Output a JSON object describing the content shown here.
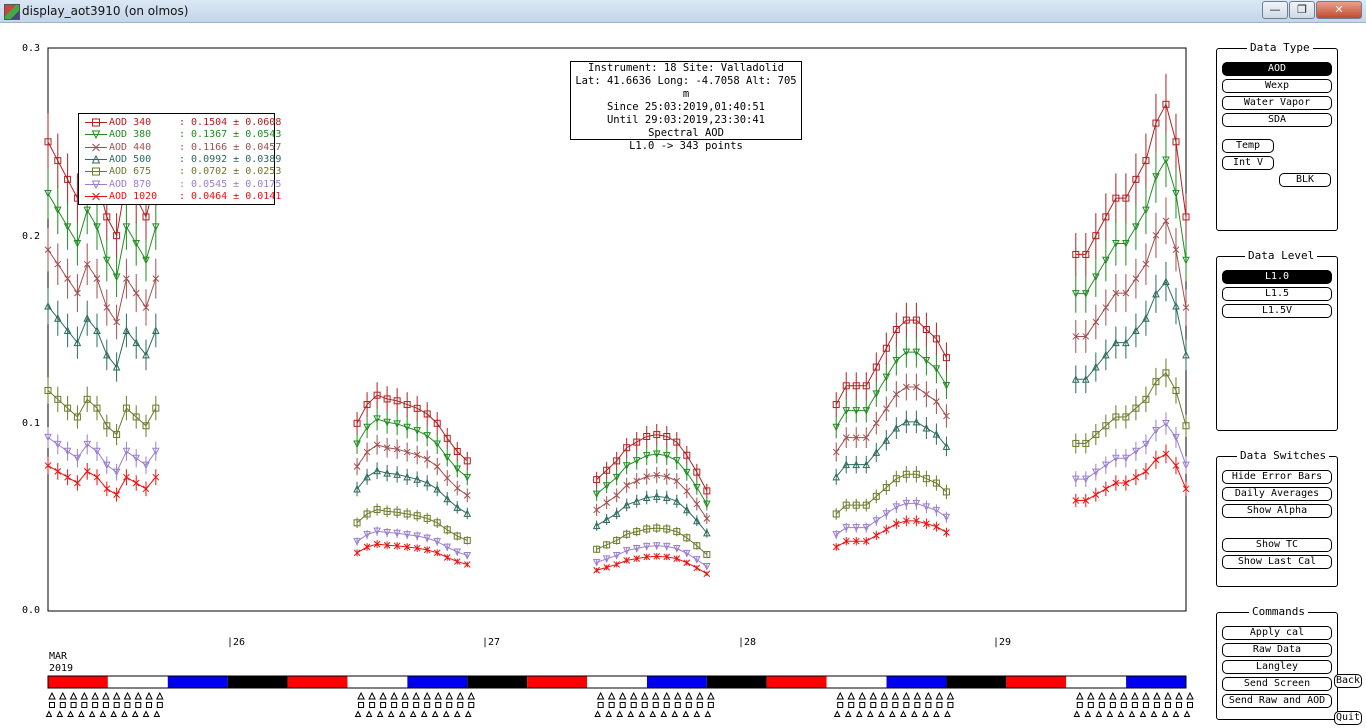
{
  "window": {
    "title": "display_aot3910 (on olmos)",
    "controls": [
      "—",
      "❐",
      "✕"
    ]
  },
  "info": {
    "lines": [
      "Instrument: 18 Site: Valladolid",
      "Lat: 41.6636 Long: -4.7058 Alt: 705 m",
      "Since 25:03:2019,01:40:51",
      "Until 29:03:2019,23:30:41",
      "Spectral AOD",
      "L1.0 -> 343 points"
    ]
  },
  "legend": [
    {
      "label": "AOD 340",
      "value": ": 0.1504 ± 0.0608",
      "color": "#b02020",
      "marker": "square"
    },
    {
      "label": "AOD 380",
      "value": ": 0.1367 ± 0.0543",
      "color": "#228b22",
      "marker": "tri-down"
    },
    {
      "label": "AOD 440",
      "value": ": 0.1166 ± 0.0457",
      "color": "#a05050",
      "marker": "x"
    },
    {
      "label": "AOD 500",
      "value": ": 0.0992 ± 0.0389",
      "color": "#2e6b5e",
      "marker": "tri-up"
    },
    {
      "label": "AOD 675",
      "value": ": 0.0702 ± 0.0253",
      "color": "#6b7a2a",
      "marker": "square"
    },
    {
      "label": "AOD 870",
      "value": ": 0.0545 ± 0.0175",
      "color": "#9a7fd0",
      "marker": "tri-down"
    },
    {
      "label": "AOD 1020",
      "value": " : 0.0464 ± 0.0141",
      "color": "#ee1111",
      "marker": "x"
    }
  ],
  "axis": {
    "y_ticks": [
      "0.3",
      "0.2",
      "0.1",
      "0.0"
    ],
    "day_ticks": [
      "|26",
      "|27",
      "|28",
      "|29"
    ],
    "month": "MAR",
    "year": "2019"
  },
  "chart_data": {
    "type": "scatter",
    "ylim": [
      0,
      0.3
    ],
    "x_unit": "day of March 2019",
    "xlim": [
      25.0,
      29.75
    ],
    "series": [
      {
        "name": "AOD 340",
        "color": "#b02020",
        "marker": "square",
        "scale": 1.0
      },
      {
        "name": "AOD 380",
        "color": "#228b22",
        "marker": "tri-down",
        "scale": 0.89
      },
      {
        "name": "AOD 440",
        "color": "#a05050",
        "marker": "x",
        "scale": 0.77
      },
      {
        "name": "AOD 500",
        "color": "#2e6b5e",
        "marker": "tri-up",
        "scale": 0.65
      },
      {
        "name": "AOD 675",
        "color": "#6b7a2a",
        "marker": "square",
        "scale": 0.47
      },
      {
        "name": "AOD 870",
        "color": "#9a7fd0",
        "marker": "tri-down",
        "scale": 0.37
      },
      {
        "name": "AOD 1020",
        "color": "#ee1111",
        "marker": "x",
        "scale": 0.31
      }
    ],
    "segments": [
      {
        "x_start": 25.0,
        "x_end": 25.45,
        "aod340": [
          0.25,
          0.24,
          0.23,
          0.22,
          0.24,
          0.23,
          0.21,
          0.2,
          0.23,
          0.22,
          0.21,
          0.23
        ]
      },
      {
        "x_start": 26.29,
        "x_end": 26.75,
        "aod340": [
          0.1,
          0.11,
          0.115,
          0.113,
          0.112,
          0.11,
          0.108,
          0.105,
          0.1,
          0.092,
          0.085,
          0.08
        ]
      },
      {
        "x_start": 27.29,
        "x_end": 27.75,
        "aod340": [
          0.07,
          0.075,
          0.08,
          0.087,
          0.09,
          0.093,
          0.094,
          0.093,
          0.09,
          0.083,
          0.074,
          0.064
        ]
      },
      {
        "x_start": 28.29,
        "x_end": 28.75,
        "aod340": [
          0.11,
          0.12,
          0.12,
          0.12,
          0.13,
          0.14,
          0.15,
          0.155,
          0.155,
          0.15,
          0.145,
          0.135
        ]
      },
      {
        "x_start": 29.29,
        "x_end": 29.75,
        "aod340": [
          0.19,
          0.19,
          0.2,
          0.21,
          0.22,
          0.22,
          0.23,
          0.24,
          0.26,
          0.27,
          0.25,
          0.21
        ]
      }
    ]
  },
  "timeline_colors": [
    "#ff0000",
    "#ffffff",
    "#0000ee",
    "#000000"
  ],
  "panels": {
    "data_type": {
      "title": "Data Type",
      "buttons": [
        {
          "label": "AOD",
          "selected": true
        },
        {
          "label": "Wexp"
        },
        {
          "label": "Water Vapor"
        },
        {
          "label": "SDA"
        },
        {
          "label": "Temp"
        },
        {
          "label": "Int V"
        },
        {
          "label": "BLK"
        }
      ]
    },
    "data_level": {
      "title": "Data Level",
      "buttons": [
        {
          "label": "L1.0",
          "selected": true
        },
        {
          "label": "L1.5"
        },
        {
          "label": "L1.5V"
        }
      ]
    },
    "data_switches": {
      "title": "Data Switches",
      "buttons": [
        {
          "label": "Hide Error Bars"
        },
        {
          "label": "Daily Averages"
        },
        {
          "label": "Show Alpha"
        },
        {
          "label": "Show TC"
        },
        {
          "label": "Show Last Cal"
        }
      ]
    },
    "commands": {
      "title": "Commands",
      "buttons": [
        {
          "label": "Apply cal"
        },
        {
          "label": "Raw Data"
        },
        {
          "label": "Langley"
        },
        {
          "label": "Send Screen"
        },
        {
          "label": "Send Raw and AOD"
        }
      ],
      "extra": {
        "back": "Back",
        "quit": "Quit"
      }
    }
  }
}
